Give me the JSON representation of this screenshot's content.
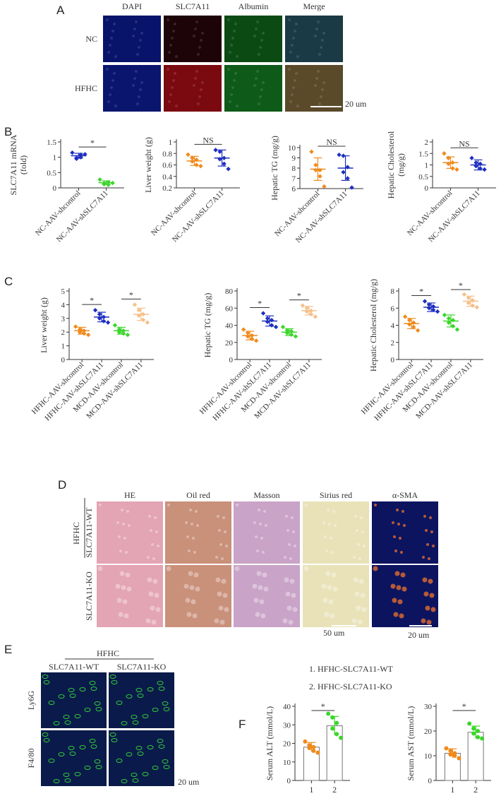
{
  "panelA": {
    "letter": "A",
    "cols": [
      "DAPI",
      "SLC7A11",
      "Albumin",
      "Merge"
    ],
    "rows": [
      "NC",
      "HFHC"
    ],
    "scale": "20 um",
    "tile_colors": {
      "NC": [
        "#08136a",
        "#1d0408",
        "#0c4a14",
        "#1a3a45"
      ],
      "HFHC": [
        "#0a156e",
        "#7a0a10",
        "#0e5a18",
        "#5a4a2a"
      ]
    }
  },
  "panelB": {
    "letter": "B",
    "charts": [
      {
        "ylabel": "SLC7A11 mRNA\n(fold)",
        "ticks": [
          0.0,
          0.5,
          1.0,
          1.5
        ],
        "ylim": [
          0,
          1.5
        ],
        "sig": "*",
        "groups": [
          {
            "label": "NC-AAV-shcontrol",
            "color": "#1f2fbf",
            "mean": 1.05,
            "sd": 0.08,
            "points": [
              1.15,
              0.98,
              1.08,
              0.95,
              1.0,
              1.1
            ]
          },
          {
            "label": "NC-AAV-shSLC7A11",
            "color": "#3ad62a",
            "mean": 0.17,
            "sd": 0.06,
            "points": [
              0.27,
              0.15,
              0.18,
              0.12,
              0.1,
              0.16
            ]
          }
        ]
      },
      {
        "ylabel": "Liver weight (g)",
        "ticks": [
          0.2,
          0.4,
          0.6,
          0.8,
          1.0
        ],
        "ylim": [
          0.2,
          1.0
        ],
        "sig": "NS",
        "groups": [
          {
            "label": "NC-AAV-shcontrol",
            "color": "#f08a1c",
            "mean": 0.67,
            "sd": 0.08,
            "points": [
              0.78,
              0.72,
              0.69,
              0.66,
              0.6,
              0.58
            ]
          },
          {
            "label": "NC-AAV-shSLC7A11",
            "color": "#1f2fbf",
            "mean": 0.72,
            "sd": 0.14,
            "points": [
              0.86,
              0.83,
              0.72,
              0.7,
              0.62,
              0.53
            ]
          }
        ]
      },
      {
        "ylabel": "Hepatic TG (mg/g)",
        "ticks": [
          6,
          7,
          8,
          9,
          10
        ],
        "ylim": [
          6,
          10
        ],
        "sig": "NS",
        "groups": [
          {
            "label": "NC-AAV-shcontrol",
            "color": "#f08a1c",
            "mean": 7.9,
            "sd": 1.1,
            "points": [
              9.6,
              8.3,
              7.8,
              7.8,
              7.2,
              6.2
            ]
          },
          {
            "label": "NC-AAV-shSLC7A11",
            "color": "#1f2fbf",
            "mean": 8.0,
            "sd": 1.2,
            "points": [
              9.3,
              9.2,
              8.1,
              7.6,
              7.0,
              6.1
            ]
          }
        ]
      },
      {
        "ylabel": "Hepatic Cholesterol\n(mg/g)",
        "ticks": [
          0.0,
          0.5,
          1.0,
          1.5,
          2.0
        ],
        "ylim": [
          0,
          2.0
        ],
        "sig": "NS",
        "groups": [
          {
            "label": "NC-AAV-shcontrol",
            "color": "#f08a1c",
            "mean": 1.1,
            "sd": 0.25,
            "points": [
              1.5,
              1.3,
              1.1,
              1.05,
              0.85,
              0.8
            ]
          },
          {
            "label": "NC-AAV-shSLC7A11",
            "color": "#1f2fbf",
            "mean": 1.0,
            "sd": 0.22,
            "points": [
              1.3,
              1.1,
              1.05,
              0.95,
              0.85,
              0.8
            ]
          }
        ]
      }
    ]
  },
  "panelC": {
    "letter": "C",
    "charts": [
      {
        "ylabel": "Liver weight (g)",
        "ticks": [
          0,
          1,
          2,
          3,
          4,
          5
        ],
        "ylim": [
          0,
          5
        ],
        "sig": [
          "*",
          "*"
        ],
        "groups": [
          {
            "label": "HFHC-AAV-shcontrol",
            "color": "#f08a1c",
            "mean": 2.1,
            "sd": 0.25,
            "points": [
              2.4,
              2.2,
              2.1,
              2.0,
              1.9,
              1.8
            ]
          },
          {
            "label": "HFHC-AAV-shSLC7A11",
            "color": "#1f2fbf",
            "mean": 3.1,
            "sd": 0.35,
            "points": [
              3.6,
              3.3,
              3.1,
              3.0,
              2.8,
              2.7
            ]
          },
          {
            "label": "MCD-AAV-shcontrol",
            "color": "#3ad62a",
            "mean": 2.1,
            "sd": 0.25,
            "points": [
              2.5,
              2.2,
              2.1,
              2.0,
              1.9,
              1.8
            ]
          },
          {
            "label": "MCD-AAV-shSLC7A11",
            "color": "#f5c08a",
            "mean": 3.3,
            "sd": 0.45,
            "points": [
              4.0,
              3.6,
              3.3,
              3.2,
              2.9,
              2.7
            ]
          }
        ]
      },
      {
        "ylabel": "Hepatic TG (mg/g)",
        "ticks": [
          0,
          20,
          40,
          60,
          80
        ],
        "ylim": [
          0,
          80
        ],
        "sig": [
          "*",
          "*"
        ],
        "groups": [
          {
            "label": "HFHC-AAV-shcontrol",
            "color": "#f08a1c",
            "mean": 28,
            "sd": 5,
            "points": [
              35,
              31,
              28,
              27,
              24,
              22
            ]
          },
          {
            "label": "HFHC-AAV-shSLC7A11",
            "color": "#1f2fbf",
            "mean": 45,
            "sd": 6,
            "points": [
              54,
              48,
              46,
              44,
              40,
              38
            ]
          },
          {
            "label": "MCD-AAV-shcontrol",
            "color": "#3ad62a",
            "mean": 32,
            "sd": 4,
            "points": [
              38,
              34,
              33,
              31,
              29,
              27
            ]
          },
          {
            "label": "MCD-AAV-shSLC7A11",
            "color": "#f5c08a",
            "mean": 57,
            "sd": 5,
            "points": [
              63,
              60,
              57,
              56,
              53,
              50
            ]
          }
        ]
      },
      {
        "ylabel": "Hepatic Cholesterol (mg/g)",
        "ticks": [
          0,
          2,
          4,
          6,
          8
        ],
        "ylim": [
          0,
          8
        ],
        "sig": [
          "*",
          "*"
        ],
        "groups": [
          {
            "label": "HFHC-AAV-shcontrol",
            "color": "#f08a1c",
            "mean": 4.2,
            "sd": 0.6,
            "points": [
              5.0,
              4.6,
              4.3,
              4.1,
              3.8,
              3.4
            ]
          },
          {
            "label": "HFHC-AAV-shSLC7A11",
            "color": "#1f2fbf",
            "mean": 6.1,
            "sd": 0.5,
            "points": [
              6.8,
              6.4,
              6.2,
              6.0,
              5.8,
              5.6
            ]
          },
          {
            "label": "MCD-AAV-shcontrol",
            "color": "#3ad62a",
            "mean": 4.5,
            "sd": 0.7,
            "points": [
              5.2,
              4.8,
              4.6,
              4.3,
              3.9,
              3.5
            ]
          },
          {
            "label": "MCD-AAV-shSLC7A11",
            "color": "#f5c08a",
            "mean": 6.8,
            "sd": 0.6,
            "points": [
              7.6,
              7.2,
              6.9,
              6.6,
              6.3,
              6.1
            ]
          }
        ]
      }
    ]
  },
  "panelD": {
    "letter": "D",
    "cols": [
      "HE",
      "Oil red",
      "Masson",
      "Sirius red",
      "α-SMA"
    ],
    "group": "HFHC",
    "rows": [
      "SLC7A11-WT",
      "SLC7A11-KO"
    ],
    "scale1": "50 um",
    "scale2": "20 um",
    "tile_colors": [
      "#e3a4b4",
      "#c9907a",
      "#c9a3c8",
      "#e9e2b8",
      "#0c1460"
    ]
  },
  "panelE": {
    "letter": "E",
    "group": "HFHC",
    "cols": [
      "SLC7A11-WT",
      "SLC7A11-KO"
    ],
    "rows": [
      "Ly6G",
      "F4/80"
    ],
    "scale": "20 um",
    "tile_color": "#0a1a4a"
  },
  "panelF": {
    "letter": "F",
    "legend": [
      "1. HFHC-SLC7A11-WT",
      "2. HFHC-SLC7A11-KO"
    ],
    "charts": [
      {
        "ylabel": "Serum ALT (mmol/L)",
        "ticks": [
          0,
          10,
          20,
          30,
          40
        ],
        "ylim": [
          0,
          40
        ],
        "sig": "*",
        "categories": [
          "1",
          "2"
        ],
        "groups": [
          {
            "color": "#f08a1c",
            "mean": 18,
            "sd": 2.5,
            "points": [
              21,
              19,
              18,
              17.5,
              16,
              15
            ]
          },
          {
            "color": "#3ad62a",
            "mean": 29.5,
            "sd": 5,
            "points": [
              36,
              34,
              31,
              28,
              25,
              23
            ]
          }
        ]
      },
      {
        "ylabel": "Serum AST (mmol/L)",
        "ticks": [
          0,
          10,
          20,
          30
        ],
        "ylim": [
          0,
          30
        ],
        "sig": "*",
        "categories": [
          "1",
          "2"
        ],
        "groups": [
          {
            "color": "#f08a1c",
            "mean": 11,
            "sd": 1.8,
            "points": [
              13,
              12,
              11,
              10.5,
              10,
              9
            ]
          },
          {
            "color": "#3ad62a",
            "mean": 19.5,
            "sd": 2.5,
            "points": [
              23,
              21,
              20,
              19,
              17.5,
              17
            ]
          }
        ]
      }
    ]
  }
}
